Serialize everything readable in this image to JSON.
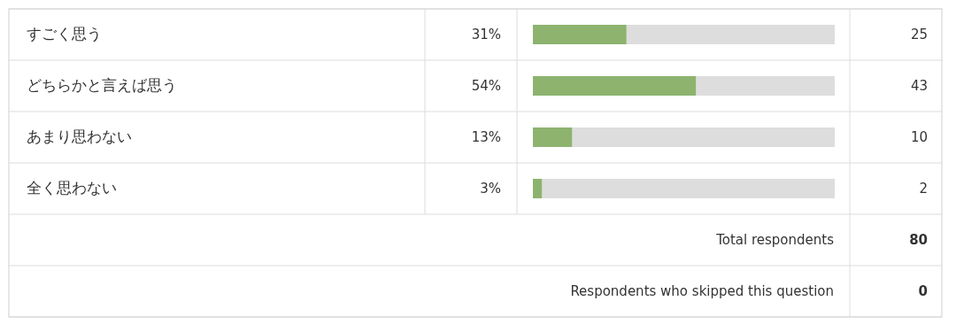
{
  "chart_data": {
    "type": "bar",
    "orientation": "horizontal",
    "categories": [
      "すごく思う",
      "どちらかと言えば思う",
      "あまり思わない",
      "全く思わない"
    ],
    "values": [
      31,
      54,
      13,
      3
    ],
    "value_labels": [
      "31%",
      "54%",
      "13%",
      "3%"
    ],
    "color": "#8db36f",
    "xlim": [
      0,
      100
    ],
    "annotations": [
      "25",
      "43",
      "10",
      "2",
      "Total respondents",
      "80",
      "Respondents who skipped this question",
      "0"
    ]
  }
}
